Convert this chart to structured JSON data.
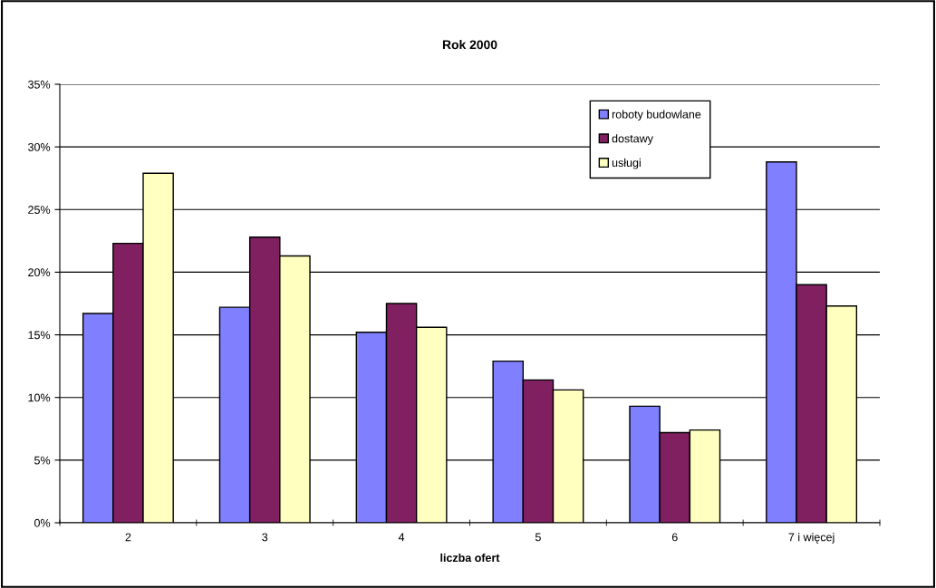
{
  "chart_data": {
    "type": "bar",
    "title": "Rok 2000",
    "xlabel": "liczba ofert",
    "categories": [
      "2",
      "3",
      "4",
      "5",
      "6",
      "7 i więcej"
    ],
    "series": [
      {
        "name": "roboty budowlane",
        "color": "#8080ff",
        "values": [
          16.7,
          17.2,
          15.2,
          12.9,
          9.3,
          28.8
        ]
      },
      {
        "name": "dostawy",
        "color": "#802060",
        "values": [
          22.3,
          22.8,
          17.5,
          11.4,
          7.2,
          19.0
        ]
      },
      {
        "name": "usługi",
        "color": "#ffffc0",
        "values": [
          27.9,
          21.3,
          15.6,
          10.6,
          7.4,
          17.3
        ]
      }
    ],
    "ylim": [
      0,
      35
    ],
    "yticks": [
      {
        "value": 0,
        "label": "0%"
      },
      {
        "value": 5,
        "label": "5%"
      },
      {
        "value": 10,
        "label": "10%"
      },
      {
        "value": 15,
        "label": "15%"
      },
      {
        "value": 20,
        "label": "20%"
      },
      {
        "value": 25,
        "label": "25%"
      },
      {
        "value": 30,
        "label": "30%"
      },
      {
        "value": 35,
        "label": "35%"
      }
    ],
    "grid": "y",
    "legend": "top right"
  }
}
